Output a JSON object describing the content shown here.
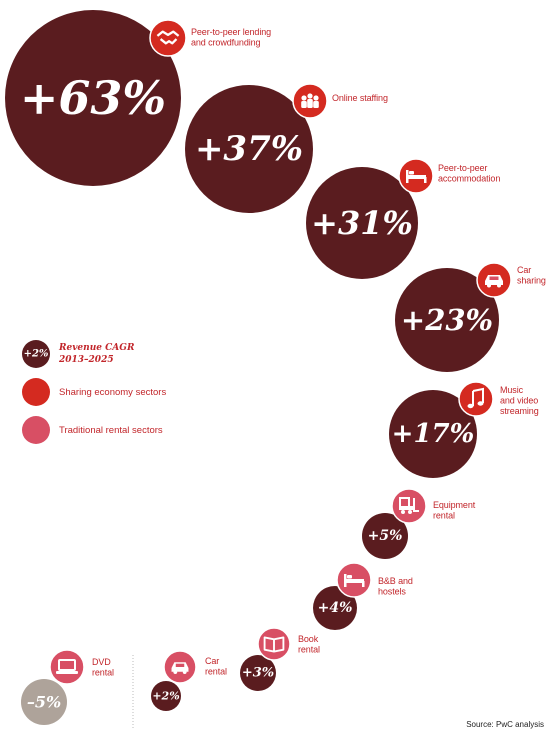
{
  "colors": {
    "value_bubble": "#5a1c1f",
    "sharing_sector": "#d42a20",
    "rental_sector": "#d84f64",
    "negative_bubble": "#aea39a",
    "label_text": "#c2262b"
  },
  "legend": {
    "sample_value": "+2%",
    "title_line1": "Revenue CAGR",
    "title_line2": "2013–2025",
    "sharing_label": "Sharing economy sectors",
    "rental_label": "Traditional rental sectors"
  },
  "source": "Source: PwC analysis",
  "chart_data": {
    "type": "bubble",
    "metric": "Revenue CAGR 2013–2025",
    "unit": "%",
    "items": [
      {
        "label_lines": [
          "Peer-to-peer lending",
          "and crowdfunding"
        ],
        "value": 63,
        "display": "+63%",
        "category": "sharing",
        "icon": "handshake-icon"
      },
      {
        "label_lines": [
          "Online staffing"
        ],
        "value": 37,
        "display": "+37%",
        "category": "sharing",
        "icon": "people-icon"
      },
      {
        "label_lines": [
          "Peer-to-peer",
          "accommodation"
        ],
        "value": 31,
        "display": "+31%",
        "category": "sharing",
        "icon": "bed-icon"
      },
      {
        "label_lines": [
          "Car",
          "sharing"
        ],
        "value": 23,
        "display": "+23%",
        "category": "sharing",
        "icon": "car-icon"
      },
      {
        "label_lines": [
          "Music",
          "and video",
          "streaming"
        ],
        "value": 17,
        "display": "+17%",
        "category": "sharing",
        "icon": "music-note-icon"
      },
      {
        "label_lines": [
          "Equipment",
          "rental"
        ],
        "value": 5,
        "display": "+5%",
        "category": "rental",
        "icon": "forklift-icon"
      },
      {
        "label_lines": [
          "B&B and",
          "hostels"
        ],
        "value": 4,
        "display": "+4%",
        "category": "rental",
        "icon": "bed-icon"
      },
      {
        "label_lines": [
          "Book",
          "rental"
        ],
        "value": 3,
        "display": "+3%",
        "category": "rental",
        "icon": "book-icon"
      },
      {
        "label_lines": [
          "Car",
          "rental"
        ],
        "value": 2,
        "display": "+2%",
        "category": "rental",
        "icon": "car-icon"
      },
      {
        "label_lines": [
          "DVD",
          "rental"
        ],
        "value": -5,
        "display": "–5%",
        "category": "rental",
        "icon": "laptop-icon"
      }
    ]
  }
}
